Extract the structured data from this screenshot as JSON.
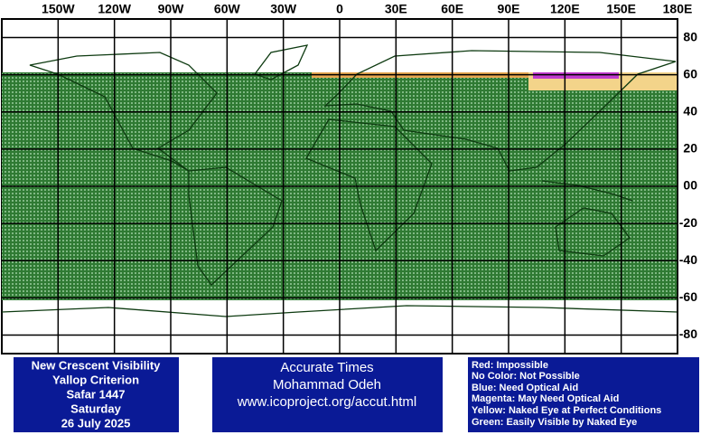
{
  "map": {
    "lon_ticks": [
      {
        "value": -150,
        "label": "150W"
      },
      {
        "value": -120,
        "label": "120W"
      },
      {
        "value": -90,
        "label": "90W"
      },
      {
        "value": -60,
        "label": "60W"
      },
      {
        "value": -30,
        "label": "30W"
      },
      0,
      {
        "value": 30,
        "label": "30E"
      },
      {
        "value": 60,
        "label": "60E"
      },
      {
        "value": 90,
        "label": "90E"
      },
      {
        "value": 120,
        "label": "120E"
      },
      {
        "value": 150,
        "label": "150E"
      },
      {
        "value": 180,
        "label": "180E"
      }
    ],
    "lat_ticks": [
      80,
      60,
      40,
      20,
      {
        "value": 0,
        "label": "00"
      },
      -20,
      -40,
      -60,
      -80
    ]
  },
  "info": {
    "lines": [
      "New Crescent Visibility",
      "Yallop Criterion",
      "Safar 1447",
      "Saturday",
      "26 July 2025"
    ]
  },
  "credit": {
    "lines": [
      "Accurate Times",
      "Mohammad Odeh",
      "www.icoproject.org/accut.html"
    ]
  },
  "legend": [
    "Red: Impossible",
    "No Color: Not Possible",
    "Blue: Need Optical Aid",
    "Magenta: May Need Optical Aid",
    "Yellow: Naked Eye at Perfect Conditions",
    "Green: Easily Visible by Naked Eye"
  ]
}
